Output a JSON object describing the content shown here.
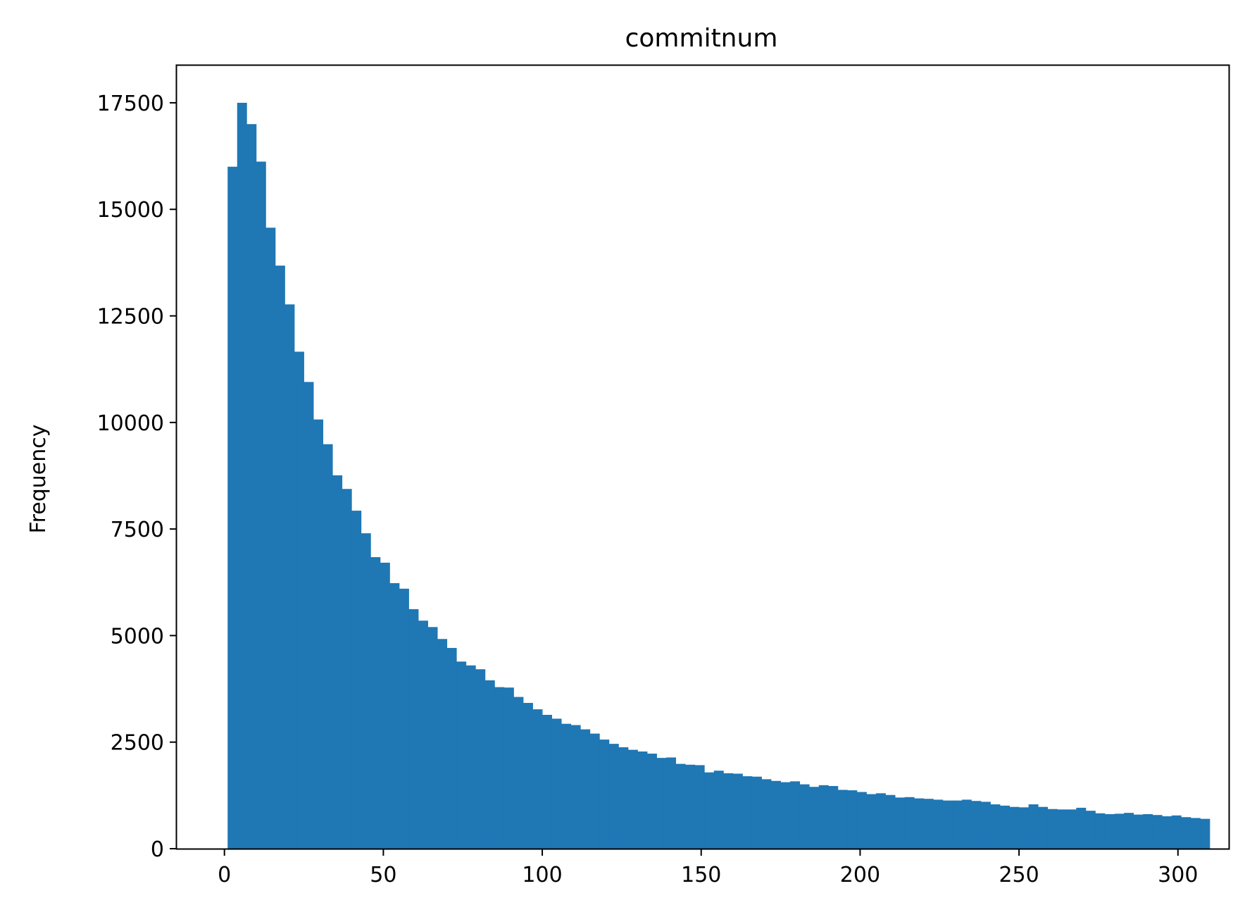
{
  "chart_data": {
    "type": "bar",
    "title": "commitnum",
    "xlabel": "",
    "ylabel": "Frequency",
    "xlim": [
      -15,
      316
    ],
    "ylim": [
      0,
      18375
    ],
    "xticks": [
      0,
      50,
      100,
      150,
      200,
      250,
      300
    ],
    "xtick_labels": [
      "0",
      "50",
      "100",
      "150",
      "200",
      "250",
      "300"
    ],
    "yticks": [
      0,
      2500,
      5000,
      7500,
      10000,
      12500,
      15000,
      17500
    ],
    "ytick_labels": [
      "0",
      "2500",
      "5000",
      "7500",
      "10000",
      "12500",
      "15000",
      "17500"
    ],
    "bar_color": "#1f77b4",
    "grid": false,
    "bin_start": 1,
    "bin_width": 3,
    "values": [
      16000,
      17500,
      17000,
      16120,
      14570,
      13680,
      12770,
      11660,
      10950,
      10070,
      9490,
      8760,
      8440,
      7930,
      7400,
      6840,
      6710,
      6230,
      6100,
      5620,
      5350,
      5200,
      4920,
      4710,
      4390,
      4300,
      4210,
      3950,
      3790,
      3780,
      3560,
      3420,
      3270,
      3140,
      3050,
      2930,
      2900,
      2800,
      2700,
      2560,
      2460,
      2380,
      2320,
      2280,
      2230,
      2130,
      2140,
      1990,
      1970,
      1960,
      1790,
      1830,
      1770,
      1760,
      1700,
      1690,
      1630,
      1590,
      1560,
      1580,
      1510,
      1450,
      1490,
      1470,
      1380,
      1370,
      1330,
      1280,
      1300,
      1260,
      1200,
      1210,
      1180,
      1170,
      1150,
      1130,
      1130,
      1150,
      1120,
      1100,
      1040,
      1010,
      980,
      970,
      1040,
      980,
      930,
      920,
      920,
      960,
      890,
      830,
      810,
      820,
      840,
      800,
      810,
      790,
      760,
      780,
      740,
      720,
      700
    ]
  }
}
